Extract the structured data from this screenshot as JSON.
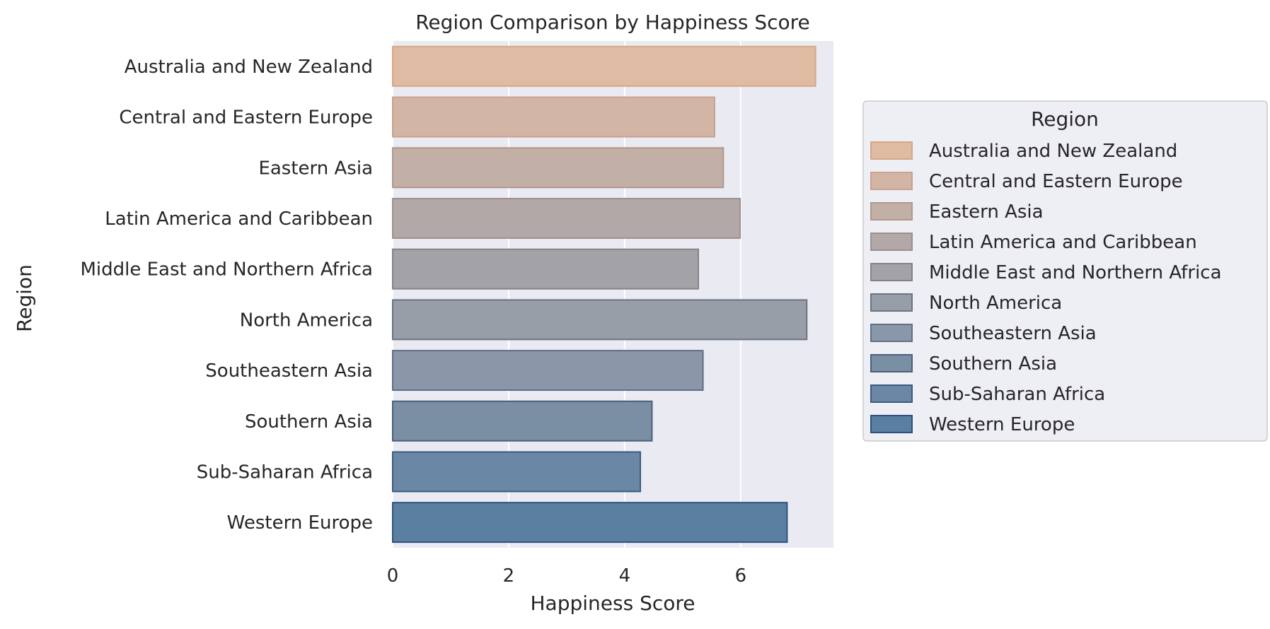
{
  "chart_data": {
    "type": "bar",
    "orientation": "horizontal",
    "title": "Region Comparison by Happiness Score",
    "xlabel": "Happiness Score",
    "ylabel": "Region",
    "xlim": [
      0,
      7.6
    ],
    "xticks": [
      "0",
      "2",
      "4",
      "6"
    ],
    "grid": true,
    "legend_title": "Region",
    "legend_position": "right, outside plot",
    "categories": [
      "Australia and New Zealand",
      "Central and Eastern Europe",
      "Eastern Asia",
      "Latin America and Caribbean",
      "Middle East and Northern Africa",
      "North America",
      "Southeastern Asia",
      "Southern Asia",
      "Sub-Saharan Africa",
      "Western Europe"
    ],
    "values": [
      7.29,
      5.55,
      5.7,
      5.99,
      5.27,
      7.14,
      5.35,
      4.47,
      4.27,
      6.8
    ],
    "colors": [
      "#e0bba3",
      "#d3b5a6",
      "#c2afa6",
      "#b1a8a7",
      "#a3a2a6",
      "#979ea8",
      "#8a97a8",
      "#7a8fa4",
      "#6a88a5",
      "#5a7fa1"
    ],
    "edge_colors": [
      "#d6a784",
      "#c8a28e",
      "#b1978d",
      "#9f908f",
      "#858385",
      "#6a7382",
      "#5f6f86",
      "#4a5f7c",
      "#3c5a80",
      "#2d517e"
    ]
  }
}
